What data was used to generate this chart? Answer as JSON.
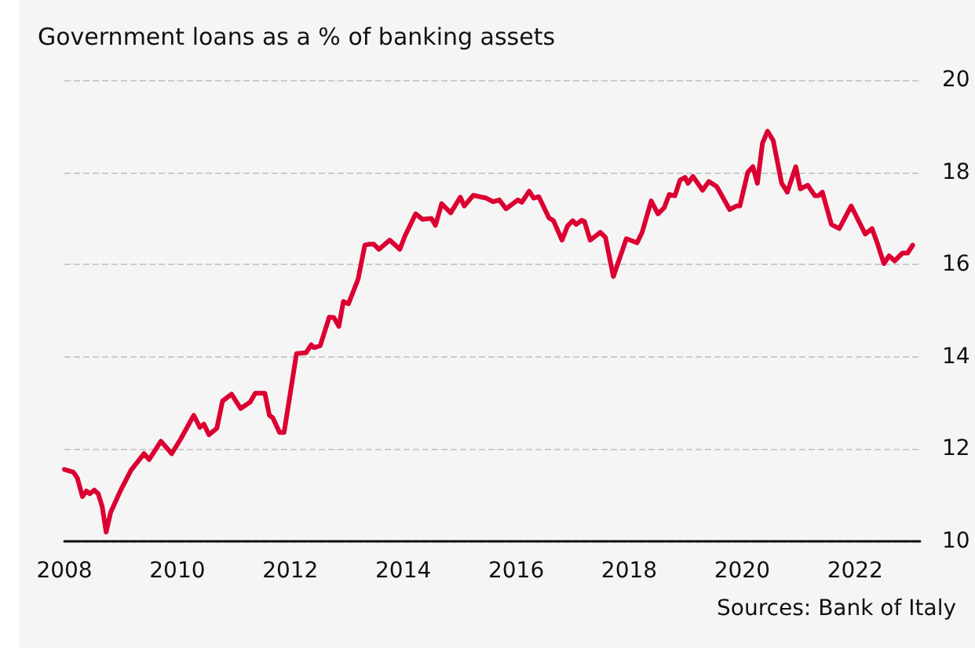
{
  "chart_data": {
    "type": "line",
    "title": "Government loans as a % of banking assets",
    "annotations": [
      "Sources: Bank of Italy"
    ],
    "xlim": [
      2008,
      2023.15
    ],
    "xticks": [
      2008,
      2010,
      2012,
      2014,
      2016,
      2018,
      2020,
      2022
    ],
    "ylim": [
      10,
      20
    ],
    "yticks": [
      10,
      12,
      14,
      16,
      18,
      20
    ],
    "grid": "y",
    "legend": false,
    "marker": "none",
    "line_style": "solid",
    "x": [
      2008.0,
      2008.16,
      2008.23,
      2008.32,
      2008.39,
      2008.45,
      2008.53,
      2008.6,
      2008.67,
      2008.74,
      2008.82,
      2008.99,
      2009.18,
      2009.41,
      2009.5,
      2009.71,
      2009.9,
      2010.06,
      2010.29,
      2010.4,
      2010.47,
      2010.56,
      2010.7,
      2010.8,
      2010.96,
      2011.12,
      2011.29,
      2011.38,
      2011.55,
      2011.63,
      2011.69,
      2011.81,
      2011.89,
      2012.11,
      2012.28,
      2012.37,
      2012.42,
      2012.53,
      2012.69,
      2012.77,
      2012.86,
      2012.94,
      2013.03,
      2013.2,
      2013.32,
      2013.39,
      2013.48,
      2013.57,
      2013.76,
      2013.94,
      2014.03,
      2014.22,
      2014.34,
      2014.5,
      2014.57,
      2014.68,
      2014.84,
      2015.01,
      2015.08,
      2015.24,
      2015.47,
      2015.59,
      2015.7,
      2015.82,
      2016.03,
      2016.1,
      2016.23,
      2016.31,
      2016.4,
      2016.58,
      2016.66,
      2016.81,
      2016.91,
      2017.0,
      2017.06,
      2017.16,
      2017.21,
      2017.31,
      2017.49,
      2017.58,
      2017.72,
      2017.95,
      2018.14,
      2018.23,
      2018.39,
      2018.51,
      2018.62,
      2018.71,
      2018.81,
      2018.9,
      2018.99,
      2019.04,
      2019.13,
      2019.3,
      2019.41,
      2019.55,
      2019.78,
      2019.9,
      2019.96,
      2020.1,
      2020.19,
      2020.27,
      2020.36,
      2020.45,
      2020.55,
      2020.7,
      2020.8,
      2020.95,
      2021.03,
      2021.16,
      2021.29,
      2021.35,
      2021.42,
      2021.58,
      2021.72,
      2021.93,
      2022.18,
      2022.3,
      2022.4,
      2022.51,
      2022.6,
      2022.7,
      2022.84,
      2022.93,
      2023.02
    ],
    "series": [
      {
        "color": "#dc0032",
        "values": [
          11.56,
          11.5,
          11.37,
          10.97,
          11.09,
          11.03,
          11.11,
          11.03,
          10.75,
          10.2,
          10.63,
          11.09,
          11.54,
          11.9,
          11.77,
          12.17,
          11.9,
          12.22,
          12.73,
          12.47,
          12.54,
          12.31,
          12.45,
          13.04,
          13.19,
          12.88,
          13.02,
          13.21,
          13.21,
          12.73,
          12.68,
          12.36,
          12.36,
          14.07,
          14.09,
          14.26,
          14.2,
          14.24,
          14.86,
          14.85,
          14.66,
          15.2,
          15.15,
          15.68,
          16.42,
          16.44,
          16.44,
          16.33,
          16.53,
          16.33,
          16.62,
          17.1,
          16.98,
          17.0,
          16.85,
          17.32,
          17.12,
          17.46,
          17.27,
          17.5,
          17.44,
          17.36,
          17.4,
          17.21,
          17.4,
          17.35,
          17.59,
          17.44,
          17.47,
          17.01,
          16.95,
          16.53,
          16.84,
          16.95,
          16.87,
          16.96,
          16.93,
          16.53,
          16.7,
          16.59,
          15.74,
          16.56,
          16.47,
          16.7,
          17.38,
          17.1,
          17.23,
          17.52,
          17.49,
          17.83,
          17.89,
          17.76,
          17.91,
          17.61,
          17.8,
          17.69,
          17.19,
          17.27,
          17.27,
          18.0,
          18.12,
          17.76,
          18.63,
          18.89,
          18.69,
          17.76,
          17.57,
          18.12,
          17.64,
          17.72,
          17.49,
          17.49,
          17.57,
          16.87,
          16.78,
          17.27,
          16.66,
          16.78,
          16.44,
          16.02,
          16.19,
          16.08,
          16.25,
          16.25,
          16.42
        ]
      }
    ]
  }
}
